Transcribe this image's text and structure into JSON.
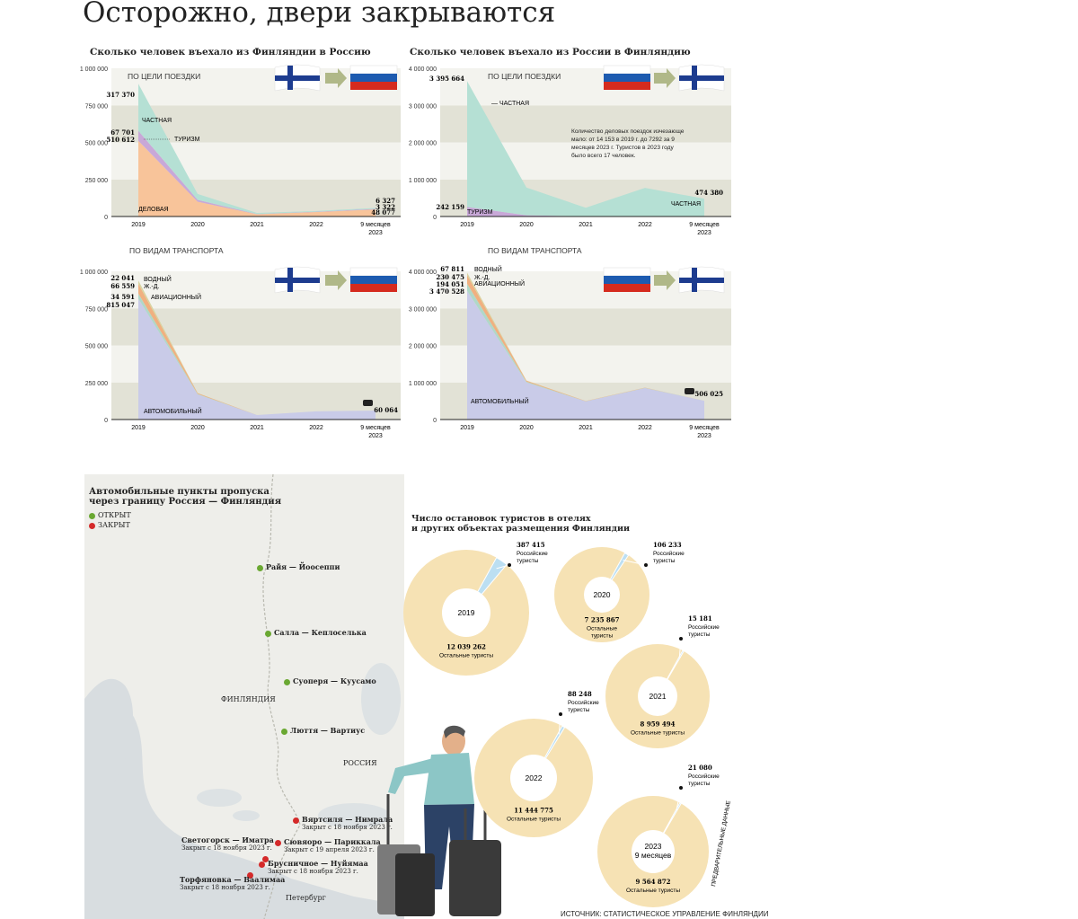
{
  "title": "Осторожно, двери закрываются",
  "colors": {
    "band_light": "#f3f3ee",
    "band_dark": "#e2e2d6",
    "private": "#b5e0d4",
    "tourism": "#c8a8d8",
    "business": "#f8c49a",
    "water": "#d8d4a0",
    "rail": "#f0b080",
    "air": "#b0d8c8",
    "auto": "#c9cbe8",
    "donut": "#f6e2b4",
    "russian_slice": "#bcdff2",
    "open": "#6aa832",
    "closed": "#d42a2a",
    "arrow": "#b0b888"
  },
  "charts": [
    {
      "title": "Сколько человек въехало из Финляндии в Россию",
      "subtitle": "ПО ЦЕЛИ ПОЕЗДКИ",
      "flags": "fi-to-ru",
      "chart_data": {
        "type": "area",
        "stacked": true,
        "categories": [
          "2019",
          "2020",
          "2021",
          "2022",
          "9 месяцев 2023"
        ],
        "ylim": [
          0,
          1000000
        ],
        "yticks": [
          "0",
          "250 000",
          "500 000",
          "750 000",
          "1 000 000"
        ],
        "series": [
          {
            "name": "ДЕЛОВАЯ",
            "color": "#f8c49a",
            "values": [
              510612,
              100000,
              15000,
              30000,
              48077
            ]
          },
          {
            "name": "ТУРИЗМ",
            "color": "#c8a8d8",
            "values": [
              67701,
              12000,
              1500,
              2500,
              3322
            ]
          },
          {
            "name": "ЧАСТНАЯ",
            "color": "#b5e0d4",
            "values": [
              317370,
              40000,
              8000,
              5000,
              6327
            ]
          }
        ]
      },
      "labels_left": [
        "317 370",
        "67 701",
        "510 612"
      ],
      "labels_right": [
        "6 327",
        "3 322",
        "48 077"
      ],
      "note": ""
    },
    {
      "title": "Сколько человек въехало из России в Финляндию",
      "subtitle": "ПО ЦЕЛИ ПОЕЗДКИ",
      "flags": "ru-to-fi",
      "chart_data": {
        "type": "area",
        "stacked": true,
        "categories": [
          "2019",
          "2020",
          "2021",
          "2022",
          "9 месяцев 2023"
        ],
        "ylim": [
          0,
          4000000
        ],
        "yticks": [
          "0",
          "1 000 000",
          "2 000 000",
          "3 000 000",
          "4 000 000"
        ],
        "series": [
          {
            "name": "ДЕЛОВАЯ",
            "color": "#f8c49a",
            "values": [
              14153,
              3000,
              1000,
              2000,
              7292
            ]
          },
          {
            "name": "ТУРИЗМ",
            "color": "#c8a8d8",
            "values": [
              242159,
              30000,
              5000,
              10000,
              17
            ]
          },
          {
            "name": "ЧАСТНАЯ",
            "color": "#b5e0d4",
            "values": [
              3395664,
              750000,
              230000,
              760000,
              474380
            ]
          }
        ]
      },
      "labels_left": [
        "3 395 664",
        "242 159"
      ],
      "labels_right": [
        "474 380"
      ],
      "note": "Количество деловых поездок изчезающе мало: от 14 153 в 2019 г. до 7292 за 9 месяцев 2023 г. Туристов в 2023 году было всего 17 человек."
    },
    {
      "title": "",
      "subtitle": "ПО ВИДАМ ТРАНСПОРТА",
      "flags": "fi-to-ru",
      "chart_data": {
        "type": "area",
        "stacked": true,
        "categories": [
          "2019",
          "2020",
          "2021",
          "2022",
          "9 месяцев 2023"
        ],
        "ylim": [
          0,
          1000000
        ],
        "yticks": [
          "0",
          "250 000",
          "500 000",
          "750 000",
          "1 000 000"
        ],
        "series": [
          {
            "name": "АВТОМОБИЛЬНЫЙ",
            "color": "#c9cbe8",
            "values": [
              815047,
              170000,
              30000,
              55000,
              60064
            ]
          },
          {
            "name": "АВИАЦИОННЫЙ",
            "color": "#b0d8c8",
            "values": [
              34591,
              3000,
              500,
              500,
              0
            ]
          },
          {
            "name": "Ж.-Д.",
            "color": "#f0b080",
            "values": [
              66559,
              5000,
              0,
              0,
              0
            ]
          },
          {
            "name": "ВОДНЫЙ",
            "color": "#d8d4a0",
            "values": [
              22041,
              1000,
              0,
              0,
              0
            ]
          }
        ]
      },
      "labels_left": [
        "22 041",
        "66 559",
        "34 591",
        "815 047"
      ],
      "labels_right": [
        "60 064"
      ],
      "note": ""
    },
    {
      "title": "",
      "subtitle": "ПО ВИДАМ ТРАНСПОРТА",
      "flags": "ru-to-fi",
      "chart_data": {
        "type": "area",
        "stacked": true,
        "categories": [
          "2019",
          "2020",
          "2021",
          "2022",
          "9 месяцев 2023"
        ],
        "ylim": [
          0,
          4000000
        ],
        "yticks": [
          "0",
          "1 000 000",
          "2 000 000",
          "3 000 000",
          "4 000 000"
        ],
        "series": [
          {
            "name": "АВТОМОБИЛЬНЫЙ",
            "color": "#c9cbe8",
            "values": [
              3470528,
              1000000,
              490000,
              850000,
              506025
            ]
          },
          {
            "name": "АВИАЦИОННЫЙ",
            "color": "#b0d8c8",
            "values": [
              194051,
              20000,
              5000,
              5000,
              0
            ]
          },
          {
            "name": "Ж.-Д.",
            "color": "#f0b080",
            "values": [
              230475,
              30000,
              5000,
              5000,
              0
            ]
          },
          {
            "name": "ВОДНЫЙ",
            "color": "#d8d4a0",
            "values": [
              67811,
              5000,
              0,
              0,
              0
            ]
          }
        ]
      },
      "labels_left": [
        "67 811",
        "230 475",
        "194 051",
        "3 470 528"
      ],
      "labels_right": [
        "506 025"
      ],
      "note": ""
    }
  ],
  "map": {
    "title_line1": "Автомобильные пункты пропуска",
    "title_line2": "через границу Россия — Финляндия",
    "legend_open": "ОТКРЫТ",
    "legend_closed": "ЗАКРЫТ",
    "finland": "ФИНЛЯНДИЯ",
    "russia": "РОССИЯ",
    "petersburg": "Петербург",
    "points": [
      {
        "name": "Райя — Йоосеппи",
        "status": "open",
        "note": ""
      },
      {
        "name": "Салла — Кеплоселька",
        "status": "open",
        "note": ""
      },
      {
        "name": "Суоперя — Куусамо",
        "status": "open",
        "note": ""
      },
      {
        "name": "Люття — Вартиус",
        "status": "open",
        "note": ""
      },
      {
        "name": "Вяртсиля — Нимрала",
        "status": "closed",
        "note": "Закрыт с 18 ноября 2023 г."
      },
      {
        "name": "Светогорск — Иматра",
        "status": "closed",
        "note": "Закрыт с 18 ноября 2023 г."
      },
      {
        "name": "Сювяоро — Париккала",
        "status": "closed",
        "note": "Закрыт с 19 апреля 2023 г."
      },
      {
        "name": "Брусничное — Нуйямаа",
        "status": "closed",
        "note": "Закрыт с 18 ноября 2023 г."
      },
      {
        "name": "Торфяновка — Ваалимаа",
        "status": "closed",
        "note": "Закрыт с 18 ноября 2023 г."
      }
    ]
  },
  "hotels": {
    "title_line1": "Число остановок туристов в отелях",
    "title_line2": "и других объектах размещения Финляндии",
    "russian_label_1": "Российские",
    "russian_label_2": "туристы",
    "other_label_1": "Остальные",
    "other_label_2": "туристы",
    "other_label_full": "Остальные туристы",
    "preliminary": "ПРЕДВАРИТЕЛЬНЫЕ ДАННЫЕ",
    "chart_data": {
      "type": "pie",
      "years": [
        {
          "year": "2019",
          "year2": "",
          "russian": 387415,
          "russian_label": "387 415",
          "other": 12039262,
          "other_label": "12 039 262"
        },
        {
          "year": "2020",
          "year2": "",
          "russian": 106233,
          "russian_label": "106 233",
          "other": 7235867,
          "other_label": "7 235 867"
        },
        {
          "year": "2021",
          "year2": "",
          "russian": 15181,
          "russian_label": "15 181",
          "other": 8959494,
          "other_label": "8 959 494"
        },
        {
          "year": "2022",
          "year2": "",
          "russian": 88248,
          "russian_label": "88 248",
          "other": 11444775,
          "other_label": "11 444 775"
        },
        {
          "year": "2023",
          "year2": "9 месяцев",
          "russian": 21080,
          "russian_label": "21 080",
          "other": 9564872,
          "other_label": "9 564 872"
        }
      ]
    }
  },
  "source": "ИСТОЧНИК: СТАТИСТИЧЕСКОЕ УПРАВЛЕНИЕ ФИНЛЯНДИИ"
}
